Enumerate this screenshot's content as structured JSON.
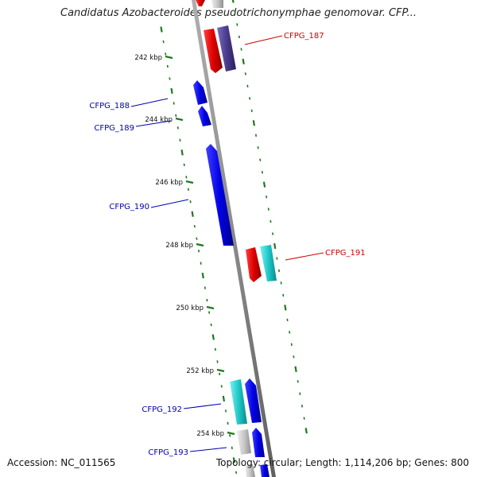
{
  "title": "Candidatus Azobacteroides pseudotrichonymphae genomovar. CFP...",
  "footer": {
    "accession": "Accession: NC_011565",
    "summary": "Topology: circular; Length: 1,114,206 bp; Genes: 800"
  },
  "colors": {
    "backbone": "#8a8a8a",
    "tick": "#1e7a1e",
    "label_red": "#d00000",
    "label_blue": "#0000b0",
    "red": "#e00000",
    "blue": "#0000e6",
    "cyan": "#1fc8c8",
    "purple": "#4a3c8c",
    "grey": "#bdbdbd"
  },
  "kbp_labels": [
    "242 kbp",
    "244 kbp",
    "246 kbp",
    "248 kbp",
    "250 kbp",
    "252 kbp",
    "254 kbp"
  ],
  "gene_labels": [
    {
      "text": "CFPG_187",
      "color": "red"
    },
    {
      "text": "CFPG_188",
      "color": "blue"
    },
    {
      "text": "CFPG_189",
      "color": "blue"
    },
    {
      "text": "CFPG_190",
      "color": "blue"
    },
    {
      "text": "CFPG_191",
      "color": "red"
    },
    {
      "text": "CFPG_192",
      "color": "blue"
    },
    {
      "text": "CFPG_193",
      "color": "blue"
    }
  ]
}
